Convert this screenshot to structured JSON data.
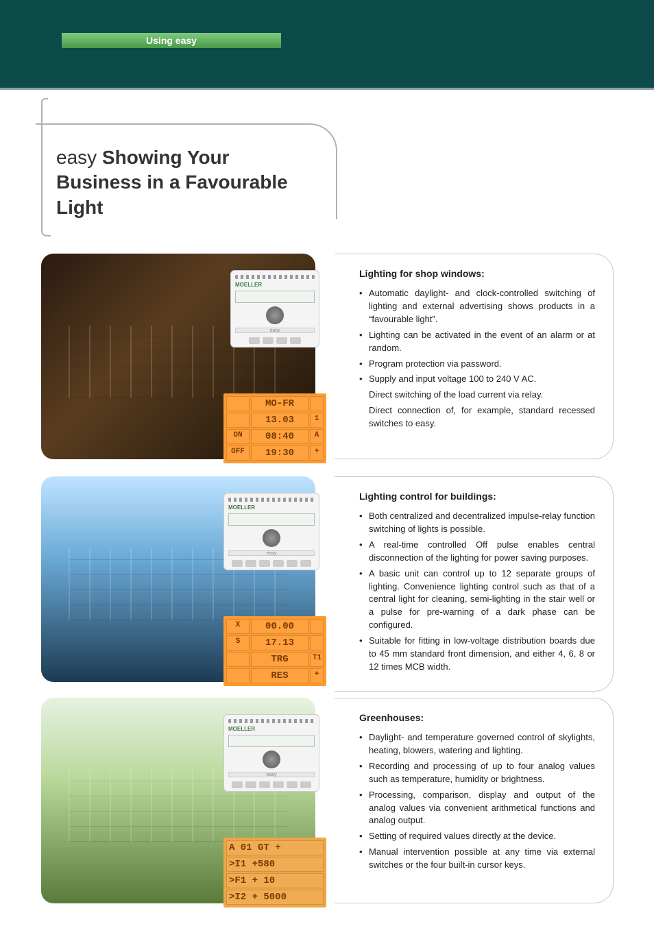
{
  "colors": {
    "page_bg": "#0d4a4a",
    "tab_grad_top": "#7fc97f",
    "tab_grad_bot": "#4a9b4a",
    "rule": "#8aa0a0",
    "callout_border": "#b0b0b0",
    "segment_bg": "#ff9a2e",
    "segment_text": "#7a3a00",
    "text": "#222222"
  },
  "tab_label": "Using easy",
  "title_brand": "easy",
  "title_rest": " Showing Your Business in a Favourable Light",
  "section1": {
    "heading": "Lighting for shop windows:",
    "bullets": [
      "Automatic daylight- and clock-controlled switching of lighting and external  advertising shows products in a “favourable light”.",
      "Lighting can be activated in the event of an alarm or at random.",
      "Program protection via password.",
      "Supply and input voltage 100 to 240 V AC."
    ],
    "sublines": [
      "Direct  switching of the load current via relay.",
      "Direct connection of, for example, standard recessed switches to  easy."
    ],
    "seg": {
      "r1c1": "",
      "r1c2": "MO-FR",
      "r1c3": "",
      "r2c1": "",
      "r2c2": "13.03",
      "r2c3": "1",
      "r3c1": "ON",
      "r3c2": "08:40",
      "r3c3": "A",
      "r4c1": "OFF",
      "r4c2": "19:30",
      "r4c3": "+"
    },
    "device_brand": "MOELLER"
  },
  "section2": {
    "heading": "Lighting control for buildings:",
    "bullets": [
      "Both centralized and decentralized impulse-relay function switching of lights is possible.",
      "A real-time controlled Off pulse enables central disconnection of the lighting for power saving purposes.",
      "A basic unit can control up to 12 separate groups of lighting. Convenience lighting control such as that of a central light for cleaning, semi-lighting in the stair well or a pulse for pre-warning of a dark phase can be configured.",
      "Suitable for fitting in low-voltage distribution boards due to 45 mm standard front dimension, and either 4, 6, 8 or 12 times MCB width."
    ],
    "seg": {
      "r1c1": "X",
      "r1c2": "00.00",
      "r1c3": "",
      "r2c1": "S",
      "r2c2": "17.13",
      "r2c3": "",
      "r3c1": "",
      "r3c2": "TRG",
      "r3c3": "T1",
      "r4c1": "",
      "r4c2": "RES",
      "r4c3": "+"
    },
    "device_brand": "MOELLER"
  },
  "section3": {
    "heading": "Greenhouses:",
    "bullets": [
      "Daylight- and temperature governed control of skylights, heating, blowers, watering and lighting.",
      "Recording and processing of up to four analog values such as temperature, humidity or brightness.",
      "Processing, comparison, display and output of the analog values via convenient arithmetical functions and analog output.",
      "Setting of required values directly at the device.",
      "Manual intervention possible at any time via external switches or the four built-in cursor keys."
    ],
    "seg": {
      "l1": "A 01 GT         +",
      "l2": ">I1  +580",
      "l3": ">F1 +  10",
      "l4": ">I2  + 5000"
    },
    "device_brand": "MOELLER"
  }
}
